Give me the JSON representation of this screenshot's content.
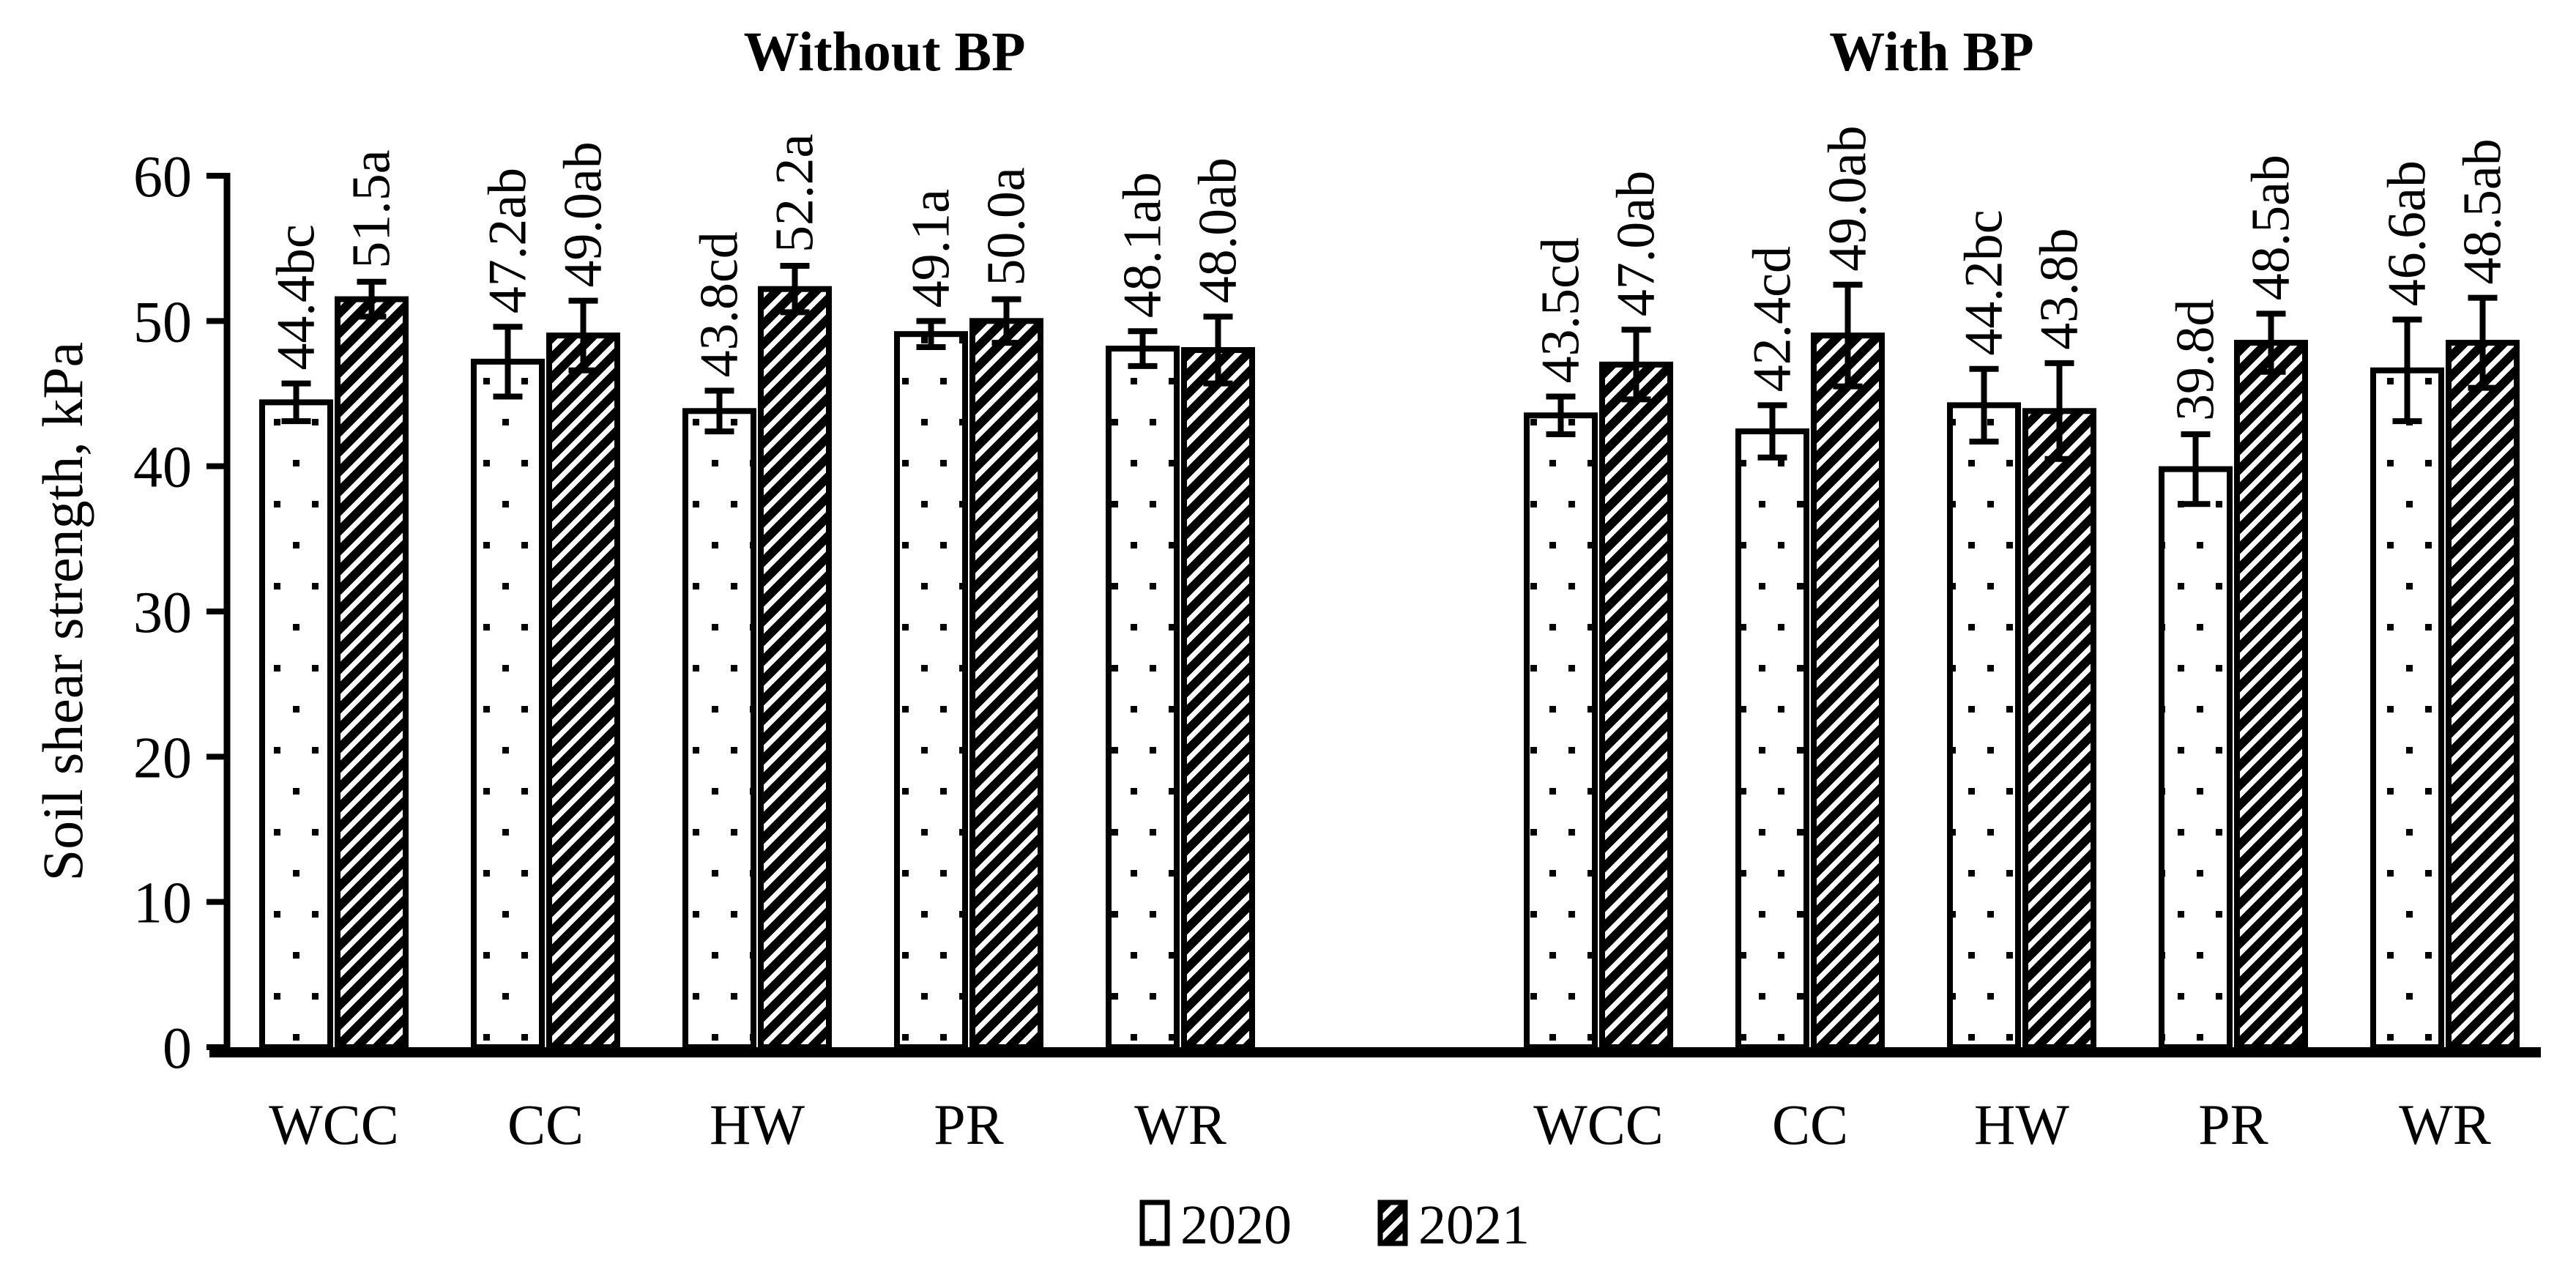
{
  "figure": {
    "background": "#ffffff",
    "ink_color": "#000000",
    "ylabel": "Soil shear strength, kPa",
    "legend": {
      "items": [
        {
          "label": "2020",
          "pattern": "dots"
        },
        {
          "label": "2021",
          "pattern": "hatch"
        }
      ]
    }
  },
  "chart_data": {
    "type": "bar",
    "ylabel": "Soil shear strength, kPa",
    "ylim": [
      0,
      60
    ],
    "yticks": [
      0,
      10,
      20,
      30,
      40,
      50,
      60
    ],
    "grid": "off",
    "legend_position": "bottom-center",
    "error_bars": "two-sided with caps",
    "panels": [
      {
        "title": "Without BP",
        "categories": [
          "WCC",
          "CC",
          "HW",
          "PR",
          "WR"
        ],
        "series": [
          {
            "name": "2020",
            "pattern": "dots",
            "values": [
              44.4,
              47.2,
              43.8,
              49.1,
              48.1
            ],
            "errors": [
              1.3,
              2.4,
              1.4,
              0.9,
              1.2
            ],
            "labels": [
              "44.4bc",
              "47.2ab",
              "43.8cd",
              "49.1a",
              "48.1ab"
            ]
          },
          {
            "name": "2021",
            "pattern": "hatch",
            "values": [
              51.5,
              49.0,
              52.2,
              50.0,
              48.0
            ],
            "errors": [
              1.2,
              2.4,
              1.6,
              1.5,
              2.3
            ],
            "labels": [
              "51.5a",
              "49.0ab",
              "52.2a",
              "50.0a",
              "48.0ab"
            ]
          }
        ]
      },
      {
        "title": "With BP",
        "categories": [
          "WCC",
          "CC",
          "HW",
          "PR",
          "WR"
        ],
        "series": [
          {
            "name": "2020",
            "pattern": "dots",
            "values": [
              43.5,
              42.4,
              44.2,
              39.8,
              46.6
            ],
            "errors": [
              1.3,
              1.8,
              2.5,
              2.4,
              3.5
            ],
            "labels": [
              "43.5cd",
              "42.4cd",
              "44.2bc",
              "39.8d",
              "46.6ab"
            ]
          },
          {
            "name": "2021",
            "pattern": "hatch",
            "values": [
              47.0,
              49.0,
              43.8,
              48.5,
              48.5
            ],
            "errors": [
              2.4,
              3.5,
              3.3,
              2.0,
              3.1
            ],
            "labels": [
              "47.0ab",
              "49.0ab",
              "43.8b",
              "48.5ab",
              "48.5ab"
            ]
          }
        ]
      }
    ]
  }
}
